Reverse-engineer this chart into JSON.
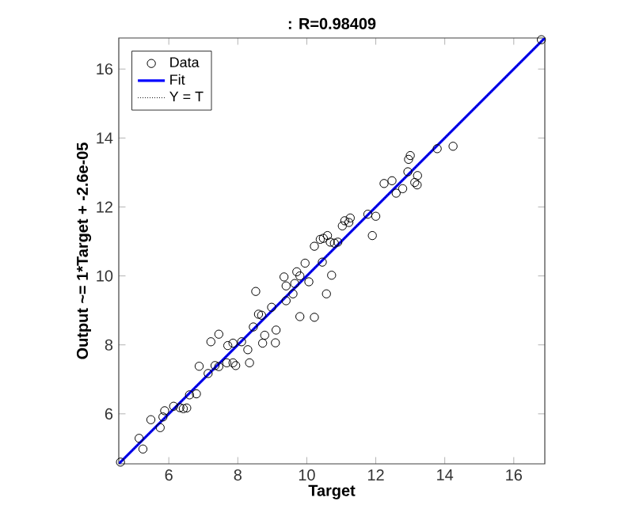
{
  "chart_data": {
    "type": "scatter",
    "title": ": R=0.98409",
    "xlabel": "Target",
    "ylabel": "Output ~= 1*Target + -2.6e-05",
    "xlim": [
      4.55,
      16.9
    ],
    "ylim": [
      4.55,
      16.9
    ],
    "xticks": [
      6,
      8,
      10,
      12,
      14,
      16
    ],
    "yticks": [
      6,
      8,
      10,
      12,
      14,
      16
    ],
    "legend": "top left",
    "grid": false,
    "series": [
      {
        "name": "Data",
        "marker": "circle",
        "color": "#000000",
        "x": [
          4.6,
          5.14,
          5.25,
          5.48,
          5.75,
          5.83,
          5.88,
          6.14,
          6.32,
          6.42,
          6.52,
          6.6,
          6.8,
          6.88,
          7.14,
          7.22,
          7.34,
          7.45,
          7.45,
          7.68,
          7.71,
          7.86,
          7.86,
          7.94,
          8.11,
          8.29,
          8.34,
          8.45,
          8.52,
          8.6,
          8.69,
          8.72,
          8.78,
          8.98,
          9.11,
          9.09,
          9.34,
          9.4,
          9.4,
          9.6,
          9.65,
          9.71,
          9.8,
          9.8,
          9.95,
          10.06,
          10.22,
          10.22,
          10.39,
          10.45,
          10.48,
          10.6,
          10.57,
          10.72,
          10.68,
          10.8,
          10.9,
          11.03,
          11.1,
          11.26,
          11.22,
          11.77,
          11.9,
          12.0,
          12.24,
          12.47,
          12.59,
          12.78,
          12.93,
          12.95,
          13.0,
          13.13,
          13.2,
          13.21,
          13.78,
          14.24,
          16.8
        ],
        "values": [
          4.6,
          5.29,
          4.98,
          5.83,
          5.6,
          5.91,
          6.09,
          6.22,
          6.18,
          6.15,
          6.17,
          6.55,
          6.58,
          7.38,
          7.17,
          8.09,
          7.4,
          7.37,
          8.31,
          7.48,
          7.98,
          7.48,
          8.05,
          7.4,
          8.09,
          7.86,
          7.48,
          8.52,
          9.55,
          8.89,
          8.86,
          8.05,
          8.28,
          9.09,
          8.43,
          8.06,
          9.97,
          9.71,
          9.28,
          9.48,
          9.78,
          10.12,
          10.0,
          8.82,
          10.37,
          9.83,
          8.8,
          10.86,
          11.06,
          10.4,
          11.09,
          11.17,
          9.48,
          10.02,
          10.98,
          10.95,
          10.98,
          11.45,
          11.6,
          11.68,
          11.55,
          11.79,
          11.17,
          11.73,
          12.68,
          12.76,
          12.4,
          12.53,
          13.02,
          13.38,
          13.49,
          12.71,
          12.64,
          12.91,
          13.69,
          13.76,
          16.85
        ]
      },
      {
        "name": "Fit",
        "type": "line",
        "marker": "none",
        "line_style": "solid",
        "color": "#0000ff",
        "x": [
          4.55,
          16.9
        ],
        "values": [
          4.55,
          16.9
        ]
      },
      {
        "name": "Y = T",
        "type": "line",
        "marker": "none",
        "line_style": "dotted",
        "color": "#000000",
        "x": [
          4.55,
          16.9
        ],
        "values": [
          4.55,
          16.9
        ]
      }
    ]
  }
}
